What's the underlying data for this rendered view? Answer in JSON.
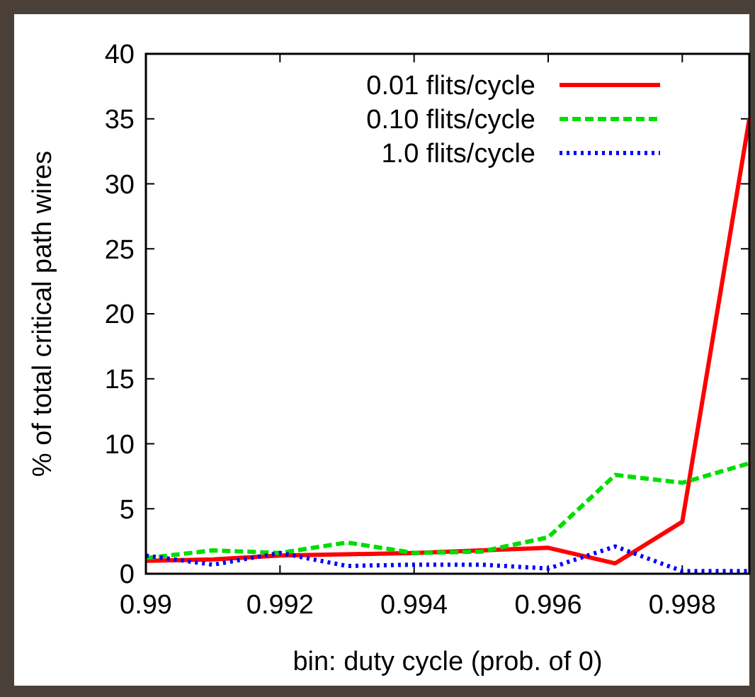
{
  "chart_data": {
    "type": "line",
    "xlabel": "bin: duty cycle (prob. of 0)",
    "ylabel": "% of total critical path wires",
    "x": [
      0.99,
      0.991,
      0.992,
      0.993,
      0.994,
      0.995,
      0.996,
      0.997,
      0.998,
      0.999
    ],
    "series": [
      {
        "name": "0.01 flits/cycle",
        "color": "#ff0000",
        "line_style": "solid",
        "values": [
          1.0,
          1.1,
          1.4,
          1.5,
          1.6,
          1.8,
          2.0,
          0.8,
          4.0,
          35
        ]
      },
      {
        "name": "0.10 flits/cycle",
        "color": "#00dd00",
        "line_style": "dashed",
        "values": [
          1.2,
          1.8,
          1.6,
          2.4,
          1.6,
          1.7,
          2.8,
          7.6,
          7.0,
          8.5
        ]
      },
      {
        "name": "1.0 flits/cycle",
        "color": "#0000ff",
        "line_style": "dotted",
        "values": [
          1.4,
          0.7,
          1.6,
          0.6,
          0.7,
          0.7,
          0.4,
          2.1,
          0.2,
          0.2
        ]
      }
    ],
    "xlim": [
      0.99,
      0.999
    ],
    "xticks": [
      {
        "value": 0.99,
        "label": "0.99"
      },
      {
        "value": 0.992,
        "label": "0.992"
      },
      {
        "value": 0.994,
        "label": "0.994"
      },
      {
        "value": 0.996,
        "label": "0.996"
      },
      {
        "value": 0.998,
        "label": "0.998"
      }
    ],
    "ylim": [
      0,
      40
    ],
    "yticks": [
      0,
      5,
      10,
      15,
      20,
      25,
      30,
      35,
      40
    ],
    "legend": "top right",
    "grid": false
  }
}
